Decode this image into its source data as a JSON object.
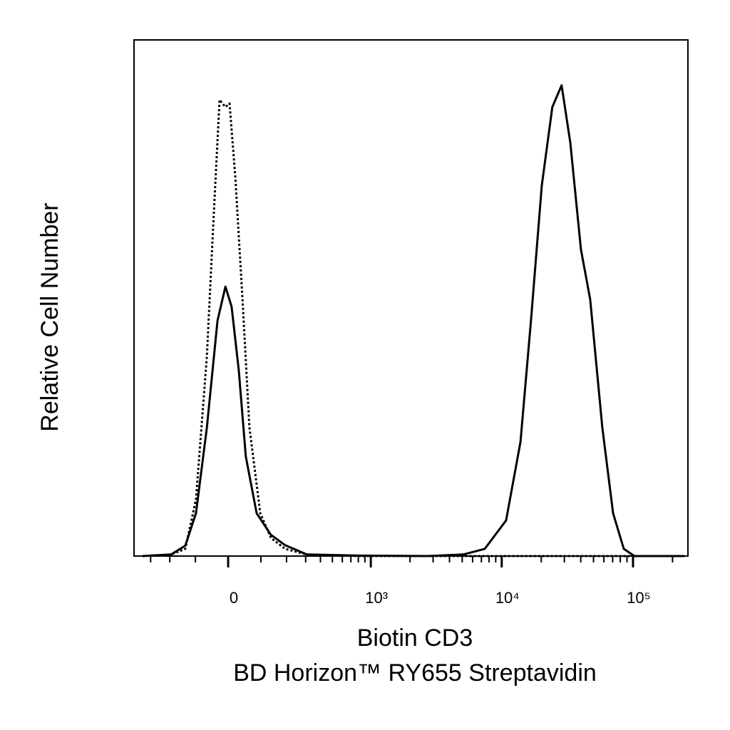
{
  "chart_data": {
    "type": "line",
    "xlabel": [
      "Biotin CD3",
      "BD Horizon™ RY655 Streptavidin"
    ],
    "ylabel": "Relative Cell Number",
    "xscale": "biexponential",
    "xlim": [
      -414,
      262000
    ],
    "ylim": [
      0,
      100
    ],
    "xticks": [
      {
        "value": 0,
        "label": "0"
      },
      {
        "value": 1000,
        "label": "10³"
      },
      {
        "value": 10000,
        "label": "10⁴"
      },
      {
        "value": 100000,
        "label": "10⁵"
      }
    ],
    "xminorticks": [
      -300,
      -200,
      -100,
      100,
      200,
      300,
      400,
      500,
      600,
      700,
      800,
      900,
      2000,
      3000,
      4000,
      5000,
      6000,
      7000,
      8000,
      9000,
      20000,
      30000,
      40000,
      50000,
      60000,
      70000,
      80000,
      90000,
      200000
    ],
    "series": [
      {
        "color": "#000000",
        "style": "solid",
        "x": [
          -352,
          -194,
          -136,
          -98,
          -63,
          -31,
          -8,
          10,
          31,
          52,
          86,
          136,
          194,
          307,
          774,
          2729,
          5100,
          7425,
          10800,
          13900,
          16700,
          20200,
          24300,
          28600,
          33300,
          40100,
          47200,
          58400,
          70500,
          85000,
          102500,
          246000
        ],
        "values": [
          0,
          0.3,
          2,
          8.3,
          24.9,
          45.6,
          52.2,
          48.3,
          35.9,
          19.3,
          8.3,
          4.1,
          2.1,
          0.3,
          0.1,
          0,
          0.3,
          1.4,
          6.9,
          22.1,
          45.6,
          71.8,
          87,
          91.2,
          80.1,
          59.4,
          49.7,
          24.9,
          8.3,
          1.4,
          0,
          0
        ]
      },
      {
        "color": "#000000",
        "style": "dotted",
        "x": [
          -352,
          -194,
          -136,
          -98,
          -63,
          -42,
          -25,
          -8,
          4,
          21,
          42,
          63,
          98,
          136,
          194,
          307,
          774,
          246000
        ],
        "values": [
          0,
          0.3,
          1.4,
          11,
          38.7,
          66.3,
          88.4,
          87,
          87.7,
          73.2,
          49.7,
          24.9,
          8.3,
          3.5,
          1.4,
          0.3,
          0,
          0
        ]
      }
    ]
  }
}
